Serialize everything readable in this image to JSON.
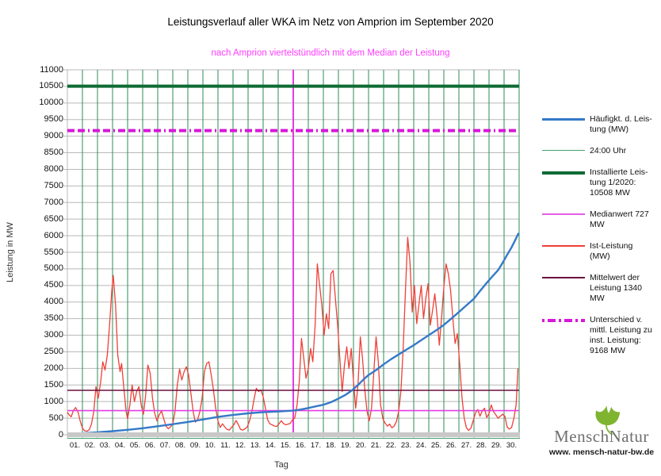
{
  "title": "Leistungsverlauf aller WKA im Netz von Amprion im September 2020",
  "subtitle": "nach Amprion viertelstündlich mit dem Median der Leistung",
  "subtitle_color": "#ff3dff",
  "axis": {
    "y_label": "Leistung in MW",
    "x_label": "Tag"
  },
  "colors": {
    "gridline": "#b9b9b9",
    "day_line_green": "#2e8b57",
    "installed_green": "#0e6b34",
    "diff_magenta": "#d816d8",
    "median_magenta": "#e23ce2",
    "mean_maroon": "#6b0f3e",
    "ist_red": "#ee4037",
    "haeufigkeit_blue": "#3579c8",
    "axis_bar_gray": "#c9c9c9",
    "baseline_green": "#44a06e"
  },
  "legend": {
    "items": [
      {
        "name": "haeufigkeit",
        "label": "Häufigkt. d. Leis-\ntung (MW)",
        "color": "#3579c8",
        "thickness": 3,
        "pattern": "solid"
      },
      {
        "name": "midnight",
        "label": "24:00 Uhr",
        "color": "#44a06e",
        "thickness": 1,
        "pattern": "solid"
      },
      {
        "name": "installed",
        "label": "Installierte Leis-\ntung 1/2020:\n10508 MW",
        "color": "#0e6b34",
        "thickness": 4,
        "pattern": "solid"
      },
      {
        "name": "median",
        "label": "Medianwert 727\nMW",
        "color": "#e45fe4",
        "thickness": 2,
        "pattern": "solid"
      },
      {
        "name": "ist",
        "label": "Ist-Leistung\n(MW)",
        "color": "#ee4037",
        "thickness": 2,
        "pattern": "solid"
      },
      {
        "name": "mean",
        "label": "Mittelwert der\nLeistung 1340\nMW",
        "color": "#6b0f3e",
        "thickness": 2,
        "pattern": "solid"
      },
      {
        "name": "diff",
        "label": "Unterschied v.\nmittl. Leistung zu\ninst. Leistung:\n9168 MW",
        "color": "#d816d8",
        "thickness": 4,
        "pattern": "dashdot"
      }
    ]
  },
  "logo": {
    "part1": "Mensch",
    "part2": "Natur",
    "url": "www. mensch-natur-bw.de",
    "leaf_color": "#7fb431"
  },
  "chart_data": {
    "type": "line",
    "title": "Leistungsverlauf aller WKA im Netz von Amprion im September 2020",
    "xlabel": "Tag",
    "ylabel": "Leistung in MW",
    "ylim": [
      0,
      11000
    ],
    "xlim_days": [
      0,
      30
    ],
    "grid": true,
    "legend_position": "right",
    "y_ticks": [
      0,
      500,
      1000,
      1500,
      2000,
      2500,
      3000,
      3500,
      4000,
      4500,
      5000,
      5500,
      6000,
      6500,
      7000,
      7500,
      8000,
      8500,
      9000,
      9500,
      10000,
      10500,
      11000
    ],
    "x_ticks": [
      "01.",
      "02.",
      "03.",
      "04.",
      "05.",
      "06.",
      "07.",
      "08.",
      "09.",
      "10.",
      "11.",
      "12.",
      "13.",
      "14.",
      "15.",
      "16.",
      "17.",
      "18.",
      "19.",
      "20.",
      "21.",
      "22.",
      "23.",
      "24.",
      "25.",
      "26.",
      "27.",
      "28.",
      "29.",
      "30."
    ],
    "day_lines": {
      "label": "24:00 Uhr",
      "every_day": true
    },
    "constant_lines": {
      "installed": {
        "label": "Installierte Leistung 1/2020",
        "value": 10508
      },
      "diff": {
        "label": "Unterschied v. mittl. Leistung zu inst. Leistung",
        "value": 9168
      },
      "mean": {
        "label": "Mittelwert der Leistung",
        "value": 1340
      },
      "median": {
        "label": "Medianwert",
        "value": 727
      },
      "median_vertical_day": 15
    },
    "series": [
      {
        "name": "Ist-Leistung (MW)",
        "key": "ist",
        "points": [
          [
            0.0,
            680
          ],
          [
            0.12,
            600
          ],
          [
            0.25,
            540
          ],
          [
            0.4,
            730
          ],
          [
            0.55,
            820
          ],
          [
            0.7,
            700
          ],
          [
            0.85,
            420
          ],
          [
            1.0,
            200
          ],
          [
            1.15,
            120
          ],
          [
            1.3,
            110
          ],
          [
            1.45,
            150
          ],
          [
            1.6,
            320
          ],
          [
            1.75,
            700
          ],
          [
            1.9,
            1450
          ],
          [
            2.05,
            1100
          ],
          [
            2.2,
            1550
          ],
          [
            2.35,
            2200
          ],
          [
            2.5,
            1950
          ],
          [
            2.65,
            2400
          ],
          [
            2.8,
            3300
          ],
          [
            2.95,
            4350
          ],
          [
            3.05,
            4800
          ],
          [
            3.2,
            3900
          ],
          [
            3.35,
            2400
          ],
          [
            3.5,
            1900
          ],
          [
            3.6,
            2150
          ],
          [
            3.75,
            1400
          ],
          [
            3.9,
            700
          ],
          [
            4.0,
            480
          ],
          [
            4.15,
            900
          ],
          [
            4.3,
            1500
          ],
          [
            4.45,
            1000
          ],
          [
            4.6,
            1300
          ],
          [
            4.75,
            1450
          ],
          [
            4.9,
            900
          ],
          [
            5.05,
            620
          ],
          [
            5.2,
            1200
          ],
          [
            5.35,
            2100
          ],
          [
            5.5,
            1850
          ],
          [
            5.65,
            1100
          ],
          [
            5.8,
            650
          ],
          [
            5.95,
            420
          ],
          [
            6.1,
            600
          ],
          [
            6.25,
            720
          ],
          [
            6.4,
            480
          ],
          [
            6.55,
            260
          ],
          [
            6.7,
            180
          ],
          [
            6.85,
            240
          ],
          [
            7.0,
            330
          ],
          [
            7.15,
            700
          ],
          [
            7.3,
            1500
          ],
          [
            7.45,
            1980
          ],
          [
            7.6,
            1650
          ],
          [
            7.75,
            1900
          ],
          [
            7.9,
            2050
          ],
          [
            8.05,
            1800
          ],
          [
            8.2,
            1260
          ],
          [
            8.35,
            700
          ],
          [
            8.5,
            380
          ],
          [
            8.65,
            450
          ],
          [
            8.8,
            700
          ],
          [
            8.95,
            1100
          ],
          [
            9.1,
            1900
          ],
          [
            9.25,
            2150
          ],
          [
            9.4,
            2200
          ],
          [
            9.55,
            1800
          ],
          [
            9.7,
            1350
          ],
          [
            9.85,
            800
          ],
          [
            10.0,
            420
          ],
          [
            10.15,
            220
          ],
          [
            10.3,
            330
          ],
          [
            10.45,
            240
          ],
          [
            10.6,
            160
          ],
          [
            10.75,
            140
          ],
          [
            10.9,
            220
          ],
          [
            11.05,
            300
          ],
          [
            11.2,
            430
          ],
          [
            11.35,
            310
          ],
          [
            11.5,
            160
          ],
          [
            11.65,
            140
          ],
          [
            11.8,
            180
          ],
          [
            11.95,
            240
          ],
          [
            12.1,
            420
          ],
          [
            12.25,
            700
          ],
          [
            12.4,
            1080
          ],
          [
            12.55,
            1400
          ],
          [
            12.7,
            1300
          ],
          [
            12.85,
            1350
          ],
          [
            13.0,
            1150
          ],
          [
            13.15,
            800
          ],
          [
            13.3,
            450
          ],
          [
            13.45,
            330
          ],
          [
            13.6,
            300
          ],
          [
            13.75,
            260
          ],
          [
            13.9,
            250
          ],
          [
            14.05,
            330
          ],
          [
            14.2,
            420
          ],
          [
            14.35,
            340
          ],
          [
            14.5,
            300
          ],
          [
            14.65,
            320
          ],
          [
            14.8,
            340
          ],
          [
            14.95,
            450
          ],
          [
            15.1,
            500
          ],
          [
            15.25,
            900
          ],
          [
            15.4,
            1600
          ],
          [
            15.55,
            2900
          ],
          [
            15.7,
            2300
          ],
          [
            15.85,
            1700
          ],
          [
            16.0,
            2000
          ],
          [
            16.15,
            2600
          ],
          [
            16.3,
            2200
          ],
          [
            16.45,
            3300
          ],
          [
            16.6,
            5150
          ],
          [
            16.75,
            4500
          ],
          [
            16.9,
            3900
          ],
          [
            17.05,
            3000
          ],
          [
            17.2,
            3650
          ],
          [
            17.35,
            3200
          ],
          [
            17.5,
            4850
          ],
          [
            17.65,
            4950
          ],
          [
            17.8,
            4100
          ],
          [
            17.95,
            3300
          ],
          [
            18.1,
            2250
          ],
          [
            18.25,
            1300
          ],
          [
            18.4,
            2100
          ],
          [
            18.55,
            2650
          ],
          [
            18.7,
            2000
          ],
          [
            18.85,
            2600
          ],
          [
            19.0,
            1600
          ],
          [
            19.15,
            800
          ],
          [
            19.3,
            1500
          ],
          [
            19.45,
            2950
          ],
          [
            19.6,
            2300
          ],
          [
            19.75,
            1350
          ],
          [
            19.9,
            700
          ],
          [
            20.05,
            420
          ],
          [
            20.2,
            800
          ],
          [
            20.35,
            1900
          ],
          [
            20.5,
            2950
          ],
          [
            20.65,
            2200
          ],
          [
            20.8,
            900
          ],
          [
            20.95,
            480
          ],
          [
            21.1,
            350
          ],
          [
            21.25,
            260
          ],
          [
            21.4,
            320
          ],
          [
            21.55,
            210
          ],
          [
            21.7,
            260
          ],
          [
            21.85,
            400
          ],
          [
            22.0,
            700
          ],
          [
            22.15,
            1300
          ],
          [
            22.3,
            2600
          ],
          [
            22.45,
            4300
          ],
          [
            22.6,
            5950
          ],
          [
            22.75,
            5200
          ],
          [
            22.9,
            3700
          ],
          [
            23.05,
            4500
          ],
          [
            23.2,
            3350
          ],
          [
            23.35,
            3950
          ],
          [
            23.5,
            4500
          ],
          [
            23.65,
            3500
          ],
          [
            23.8,
            4100
          ],
          [
            23.95,
            4550
          ],
          [
            24.1,
            3300
          ],
          [
            24.25,
            3750
          ],
          [
            24.4,
            4250
          ],
          [
            24.55,
            3600
          ],
          [
            24.7,
            2700
          ],
          [
            24.85,
            3550
          ],
          [
            25.0,
            4450
          ],
          [
            25.15,
            5150
          ],
          [
            25.3,
            4850
          ],
          [
            25.45,
            4350
          ],
          [
            25.6,
            3500
          ],
          [
            25.75,
            2750
          ],
          [
            25.9,
            3050
          ],
          [
            26.05,
            2150
          ],
          [
            26.2,
            1150
          ],
          [
            26.35,
            500
          ],
          [
            26.5,
            210
          ],
          [
            26.65,
            130
          ],
          [
            26.8,
            200
          ],
          [
            26.95,
            420
          ],
          [
            27.1,
            650
          ],
          [
            27.25,
            760
          ],
          [
            27.4,
            560
          ],
          [
            27.55,
            720
          ],
          [
            27.7,
            800
          ],
          [
            27.85,
            520
          ],
          [
            28.0,
            640
          ],
          [
            28.15,
            900
          ],
          [
            28.3,
            700
          ],
          [
            28.45,
            600
          ],
          [
            28.6,
            500
          ],
          [
            28.75,
            560
          ],
          [
            28.9,
            620
          ],
          [
            29.05,
            560
          ],
          [
            29.2,
            240
          ],
          [
            29.35,
            170
          ],
          [
            29.5,
            220
          ],
          [
            29.65,
            500
          ],
          [
            29.8,
            900
          ],
          [
            29.92,
            2000
          ]
        ]
      },
      {
        "name": "Häufigkt. d. Leistung (MW)",
        "key": "haeufigkeit",
        "points": [
          [
            0,
            15
          ],
          [
            1,
            45
          ],
          [
            2,
            75
          ],
          [
            3,
            108
          ],
          [
            4,
            148
          ],
          [
            5,
            196
          ],
          [
            6,
            255
          ],
          [
            7,
            318
          ],
          [
            8,
            385
          ],
          [
            9,
            460
          ],
          [
            10,
            540
          ],
          [
            11,
            595
          ],
          [
            12,
            645
          ],
          [
            13,
            680
          ],
          [
            14,
            700
          ],
          [
            15,
            727
          ],
          [
            15.5,
            760
          ],
          [
            16,
            805
          ],
          [
            16.5,
            855
          ],
          [
            17,
            905
          ],
          [
            17.5,
            980
          ],
          [
            18,
            1090
          ],
          [
            18.5,
            1210
          ],
          [
            18.9,
            1340
          ],
          [
            19.3,
            1500
          ],
          [
            19.7,
            1680
          ],
          [
            20,
            1800
          ],
          [
            20.5,
            1950
          ],
          [
            21,
            2120
          ],
          [
            21.5,
            2280
          ],
          [
            22,
            2420
          ],
          [
            22.5,
            2560
          ],
          [
            23,
            2700
          ],
          [
            23.5,
            2850
          ],
          [
            24,
            3000
          ],
          [
            24.5,
            3150
          ],
          [
            25,
            3310
          ],
          [
            25.5,
            3500
          ],
          [
            26,
            3700
          ],
          [
            26.5,
            3900
          ],
          [
            27,
            4100
          ],
          [
            27.4,
            4330
          ],
          [
            27.8,
            4550
          ],
          [
            28.2,
            4760
          ],
          [
            28.6,
            4960
          ],
          [
            28.9,
            5180
          ],
          [
            29.2,
            5420
          ],
          [
            29.5,
            5650
          ],
          [
            29.7,
            5830
          ],
          [
            29.9,
            6020
          ],
          [
            29.97,
            6080
          ]
        ]
      }
    ]
  }
}
